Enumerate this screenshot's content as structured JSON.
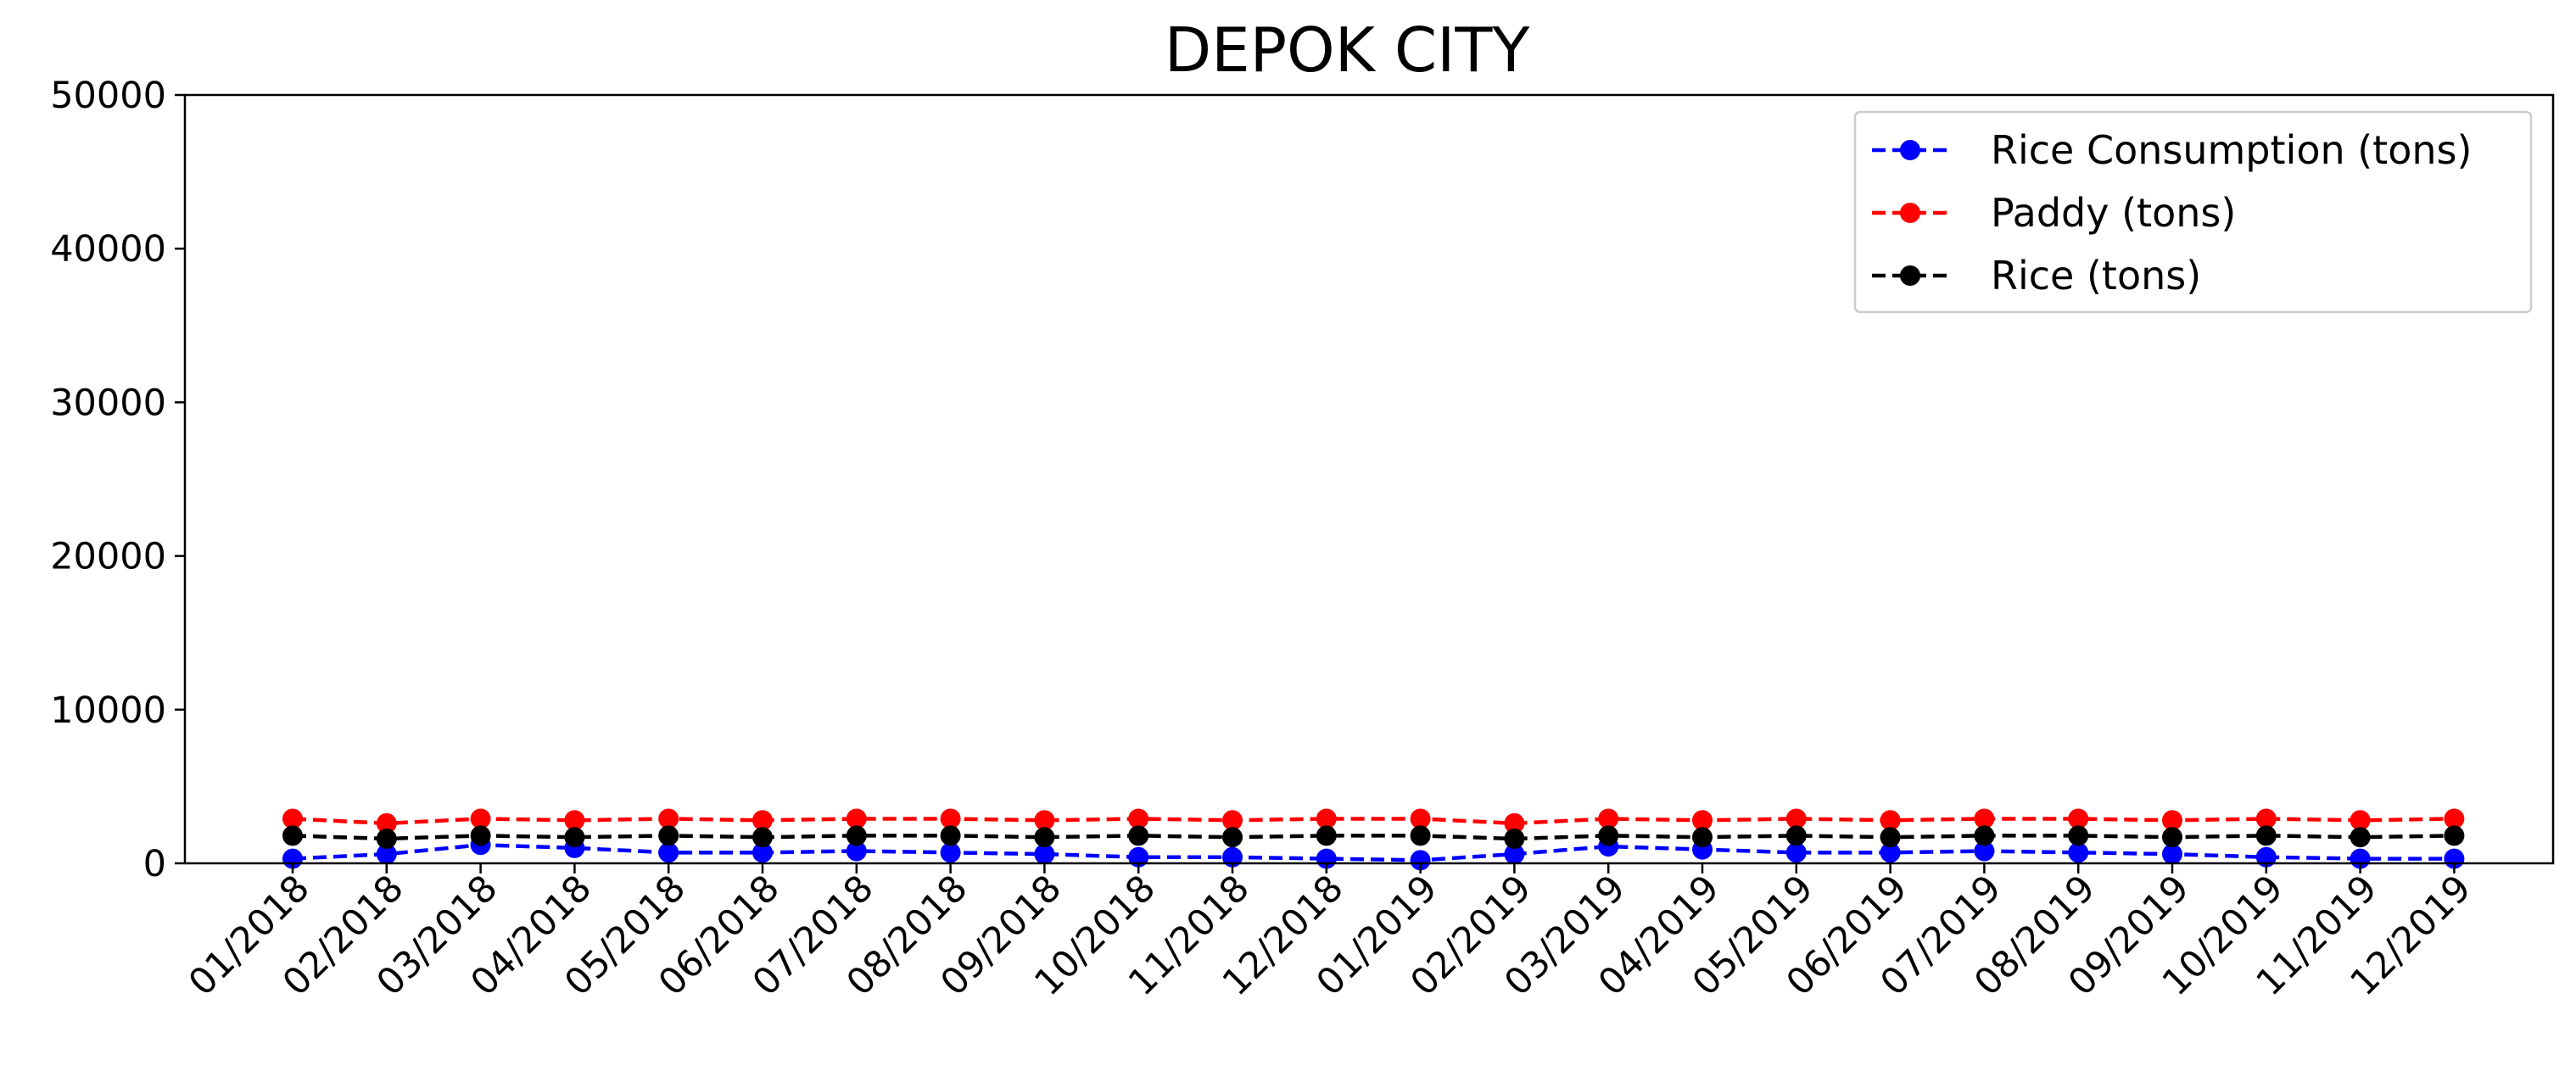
{
  "chart_data": {
    "type": "line",
    "title": "DEPOK CITY",
    "xlabel": "",
    "ylabel": "",
    "ylim": [
      0,
      50000
    ],
    "yticks": [
      0,
      10000,
      20000,
      30000,
      40000,
      50000
    ],
    "categories": [
      "01/2018",
      "02/2018",
      "03/2018",
      "04/2018",
      "05/2018",
      "06/2018",
      "07/2018",
      "08/2018",
      "09/2018",
      "10/2018",
      "11/2018",
      "12/2018",
      "01/2019",
      "02/2019",
      "03/2019",
      "04/2019",
      "05/2019",
      "06/2019",
      "07/2019",
      "08/2019",
      "09/2019",
      "10/2019",
      "11/2019",
      "12/2019"
    ],
    "legend_position": "top-right",
    "grid": false,
    "series": [
      {
        "name": "Rice Consumption (tons)",
        "color": "#0000ff",
        "values": [
          300,
          600,
          1200,
          1000,
          700,
          700,
          800,
          700,
          600,
          400,
          400,
          300,
          200,
          600,
          1100,
          900,
          700,
          700,
          800,
          700,
          600,
          400,
          300,
          300
        ]
      },
      {
        "name": "Paddy (tons)",
        "color": "#ff0000",
        "values": [
          2900,
          2600,
          2900,
          2800,
          2900,
          2800,
          2900,
          2900,
          2800,
          2900,
          2800,
          2900,
          2900,
          2600,
          2900,
          2800,
          2900,
          2800,
          2900,
          2900,
          2800,
          2900,
          2800,
          2900
        ]
      },
      {
        "name": "Rice (tons)",
        "color": "#000000",
        "values": [
          1800,
          1600,
          1800,
          1700,
          1800,
          1700,
          1800,
          1800,
          1700,
          1800,
          1700,
          1800,
          1800,
          1600,
          1800,
          1700,
          1800,
          1700,
          1800,
          1800,
          1700,
          1800,
          1700,
          1800
        ]
      }
    ]
  }
}
